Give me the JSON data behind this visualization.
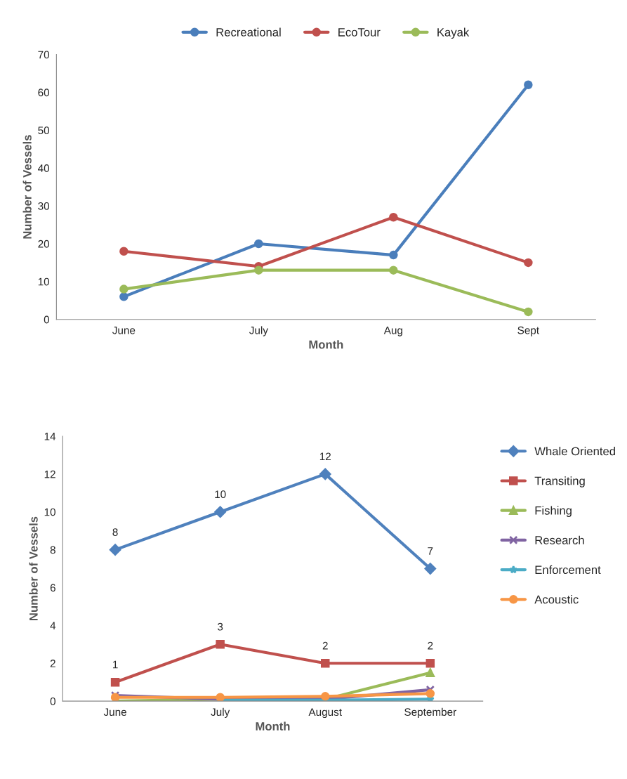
{
  "chart_data": [
    {
      "type": "line",
      "xlabel": "Month",
      "ylabel": "Number of Vessels",
      "categories": [
        "June",
        "July",
        "Aug",
        "Sept"
      ],
      "ylim": [
        0,
        70
      ],
      "yticks": [
        0,
        10,
        20,
        30,
        40,
        50,
        60,
        70
      ],
      "legend": "top",
      "marker": "circle",
      "grid": false,
      "series": [
        {
          "name": "Recreational",
          "color": "#4a7ebb",
          "values": [
            6,
            20,
            17,
            62
          ]
        },
        {
          "name": "EcoTour",
          "color": "#c0504d",
          "values": [
            18,
            14,
            27,
            15
          ]
        },
        {
          "name": "Kayak",
          "color": "#9bbb59",
          "values": [
            8,
            13,
            13,
            2
          ]
        }
      ]
    },
    {
      "type": "line",
      "xlabel": "Month",
      "ylabel": "Number of Vessels",
      "categories": [
        "June",
        "July",
        "August",
        "September"
      ],
      "ylim": [
        0,
        14
      ],
      "yticks": [
        0,
        2,
        4,
        6,
        8,
        10,
        12,
        14
      ],
      "legend": "right",
      "grid": false,
      "series": [
        {
          "name": "Whale Oriented",
          "color": "#4f81bd",
          "marker": "diamond",
          "values": [
            8,
            10,
            12,
            7
          ],
          "value_labels": [
            "8",
            "10",
            "12",
            "7"
          ]
        },
        {
          "name": "Transiting",
          "color": "#c0504d",
          "marker": "square",
          "values": [
            1,
            3,
            2,
            2
          ],
          "value_labels": [
            "1",
            "3",
            "2",
            "2"
          ]
        },
        {
          "name": "Fishing",
          "color": "#9bbb59",
          "marker": "triangle",
          "values": [
            0,
            0.1,
            0.1,
            1.5
          ]
        },
        {
          "name": "Research",
          "color": "#8064a2",
          "marker": "cross",
          "values": [
            0.3,
            0.1,
            0.1,
            0.6
          ]
        },
        {
          "name": "Enforcement",
          "color": "#4bacc6",
          "marker": "star",
          "values": [
            null,
            0.05,
            0.05,
            0.1
          ]
        },
        {
          "name": "Acoustic",
          "color": "#f79646",
          "marker": "circle",
          "values": [
            0.2,
            0.2,
            0.25,
            0.4
          ]
        }
      ]
    }
  ]
}
